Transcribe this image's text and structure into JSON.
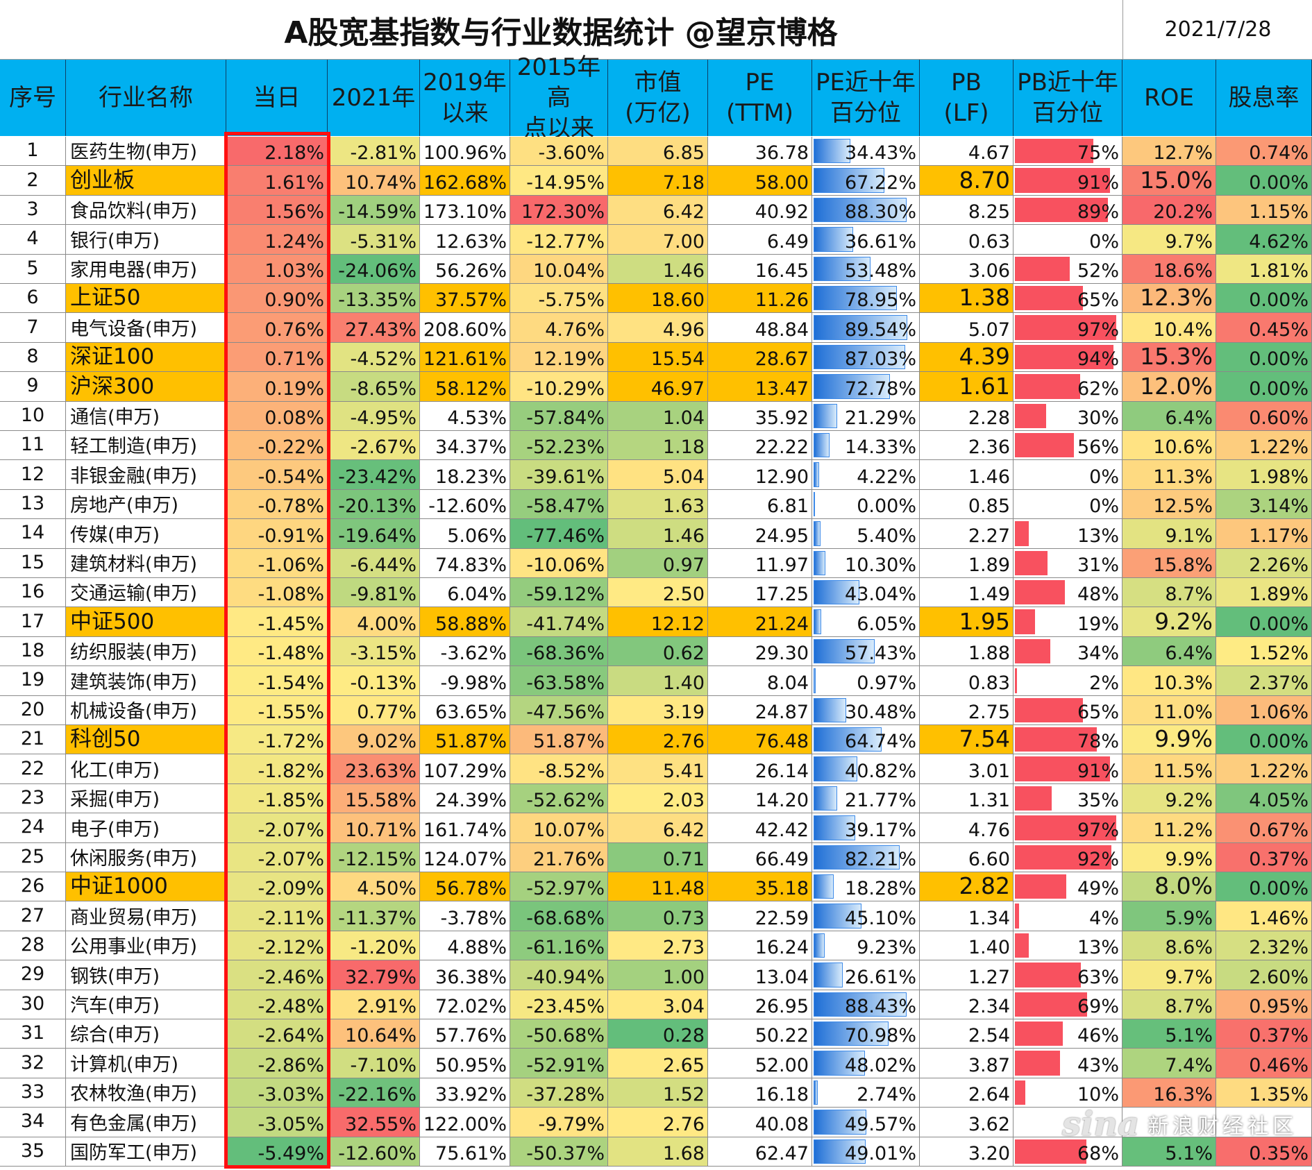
{
  "title": "A股宽基指数与行业数据统计 @望京博格",
  "date": "2021/7/28",
  "headers": [
    "序号",
    "行业名称",
    "当日",
    "2021年",
    "2019年\n以来",
    "2015年高\n点以来",
    "市值\n(万亿)",
    "PE\n(TTM)",
    "PE近十年\n百分位",
    "PB\n(LF)",
    "PB近十年\n百分位",
    "ROE",
    "股息率"
  ],
  "rows": [
    [
      "1",
      "医药生物(申万)",
      "2.18%",
      "-2.81%",
      "100.96%",
      "-3.60%",
      "6.85",
      "36.78",
      "34.43%",
      "4.67",
      "75%",
      "12.7%",
      "0.74%"
    ],
    [
      "2",
      "创业板",
      "1.61%",
      "10.74%",
      "162.68%",
      "-14.95%",
      "7.18",
      "58.00",
      "67.22%",
      "8.70",
      "91%",
      "15.0%",
      "0.00%"
    ],
    [
      "3",
      "食品饮料(申万)",
      "1.56%",
      "-14.59%",
      "173.10%",
      "172.30%",
      "6.42",
      "40.92",
      "88.30%",
      "8.25",
      "89%",
      "20.2%",
      "1.15%"
    ],
    [
      "4",
      "银行(申万)",
      "1.24%",
      "-5.31%",
      "12.63%",
      "-12.77%",
      "7.00",
      "6.49",
      "36.61%",
      "0.63",
      "0%",
      "9.7%",
      "4.62%"
    ],
    [
      "5",
      "家用电器(申万)",
      "1.03%",
      "-24.06%",
      "56.26%",
      "10.04%",
      "1.46",
      "16.45",
      "53.48%",
      "3.06",
      "52%",
      "18.6%",
      "1.81%"
    ],
    [
      "6",
      "上证50",
      "0.90%",
      "-13.35%",
      "37.57%",
      "-5.75%",
      "18.60",
      "11.26",
      "78.95%",
      "1.38",
      "65%",
      "12.3%",
      "0.00%"
    ],
    [
      "7",
      "电气设备(申万)",
      "0.76%",
      "27.43%",
      "208.60%",
      "4.76%",
      "4.96",
      "48.84",
      "89.54%",
      "5.07",
      "97%",
      "10.4%",
      "0.45%"
    ],
    [
      "8",
      "深证100",
      "0.71%",
      "-4.52%",
      "121.61%",
      "12.19%",
      "15.54",
      "28.67",
      "87.03%",
      "4.39",
      "94%",
      "15.3%",
      "0.00%"
    ],
    [
      "9",
      "沪深300",
      "0.19%",
      "-8.65%",
      "58.12%",
      "-10.29%",
      "46.97",
      "13.47",
      "72.78%",
      "1.61",
      "62%",
      "12.0%",
      "0.00%"
    ],
    [
      "10",
      "通信(申万)",
      "0.08%",
      "-4.95%",
      "4.53%",
      "-57.84%",
      "1.04",
      "35.92",
      "21.29%",
      "2.28",
      "30%",
      "6.4%",
      "0.60%"
    ],
    [
      "11",
      "轻工制造(申万)",
      "-0.22%",
      "-2.67%",
      "34.37%",
      "-52.23%",
      "1.18",
      "22.22",
      "14.33%",
      "2.36",
      "56%",
      "10.6%",
      "1.22%"
    ],
    [
      "12",
      "非银金融(申万)",
      "-0.54%",
      "-23.42%",
      "18.23%",
      "-39.61%",
      "5.04",
      "12.90",
      "4.22%",
      "1.46",
      "0%",
      "11.3%",
      "1.98%"
    ],
    [
      "13",
      "房地产(申万)",
      "-0.78%",
      "-20.13%",
      "-12.60%",
      "-58.47%",
      "1.63",
      "6.81",
      "0.00%",
      "0.85",
      "0%",
      "12.5%",
      "3.14%"
    ],
    [
      "14",
      "传媒(申万)",
      "-0.91%",
      "-19.64%",
      "5.06%",
      "-77.46%",
      "1.46",
      "24.95",
      "5.40%",
      "2.27",
      "13%",
      "9.1%",
      "1.17%"
    ],
    [
      "15",
      "建筑材料(申万)",
      "-1.06%",
      "-6.44%",
      "74.83%",
      "-10.06%",
      "0.97",
      "11.97",
      "10.30%",
      "1.89",
      "31%",
      "15.8%",
      "2.26%"
    ],
    [
      "16",
      "交通运输(申万)",
      "-1.08%",
      "-9.81%",
      "6.04%",
      "-59.12%",
      "2.50",
      "17.25",
      "43.04%",
      "1.49",
      "48%",
      "8.7%",
      "1.89%"
    ],
    [
      "17",
      "中证500",
      "-1.45%",
      "4.00%",
      "58.88%",
      "-41.74%",
      "12.12",
      "21.24",
      "6.05%",
      "1.95",
      "19%",
      "9.2%",
      "0.00%"
    ],
    [
      "18",
      "纺织服装(申万)",
      "-1.48%",
      "-3.15%",
      "-3.62%",
      "-68.36%",
      "0.62",
      "29.30",
      "57.43%",
      "1.88",
      "34%",
      "6.4%",
      "1.52%"
    ],
    [
      "19",
      "建筑装饰(申万)",
      "-1.54%",
      "-0.13%",
      "-9.98%",
      "-63.58%",
      "1.40",
      "8.04",
      "0.97%",
      "0.83",
      "2%",
      "10.3%",
      "2.37%"
    ],
    [
      "20",
      "机械设备(申万)",
      "-1.55%",
      "0.77%",
      "63.65%",
      "-47.56%",
      "3.19",
      "24.87",
      "30.48%",
      "2.75",
      "65%",
      "11.0%",
      "1.06%"
    ],
    [
      "21",
      "科创50",
      "-1.72%",
      "9.02%",
      "51.87%",
      "51.87%",
      "2.76",
      "76.48",
      "64.74%",
      "7.54",
      "78%",
      "9.9%",
      "0.00%"
    ],
    [
      "22",
      "化工(申万)",
      "-1.82%",
      "23.63%",
      "107.29%",
      "-8.52%",
      "5.41",
      "26.14",
      "40.82%",
      "3.01",
      "91%",
      "11.5%",
      "1.22%"
    ],
    [
      "23",
      "采掘(申万)",
      "-1.85%",
      "15.58%",
      "24.39%",
      "-52.62%",
      "2.03",
      "14.20",
      "21.77%",
      "1.31",
      "35%",
      "9.2%",
      "4.05%"
    ],
    [
      "24",
      "电子(申万)",
      "-2.07%",
      "10.71%",
      "161.74%",
      "10.07%",
      "6.42",
      "42.42",
      "39.17%",
      "4.76",
      "97%",
      "11.2%",
      "0.67%"
    ],
    [
      "25",
      "休闲服务(申万)",
      "-2.07%",
      "-12.15%",
      "124.07%",
      "21.76%",
      "0.71",
      "66.49",
      "82.21%",
      "6.60",
      "92%",
      "9.9%",
      "0.37%"
    ],
    [
      "26",
      "中证1000",
      "-2.09%",
      "4.50%",
      "56.78%",
      "-52.97%",
      "11.48",
      "35.18",
      "18.28%",
      "2.82",
      "49%",
      "8.0%",
      "0.00%"
    ],
    [
      "27",
      "商业贸易(申万)",
      "-2.11%",
      "-11.37%",
      "-3.78%",
      "-68.68%",
      "0.73",
      "22.59",
      "45.10%",
      "1.34",
      "4%",
      "5.9%",
      "1.46%"
    ],
    [
      "28",
      "公用事业(申万)",
      "-2.12%",
      "-1.20%",
      "4.88%",
      "-61.16%",
      "2.73",
      "16.24",
      "9.23%",
      "1.40",
      "13%",
      "8.6%",
      "2.32%"
    ],
    [
      "29",
      "钢铁(申万)",
      "-2.46%",
      "32.79%",
      "36.38%",
      "-40.94%",
      "1.00",
      "13.04",
      "26.61%",
      "1.27",
      "63%",
      "9.7%",
      "2.60%"
    ],
    [
      "30",
      "汽车(申万)",
      "-2.48%",
      "2.91%",
      "72.02%",
      "-23.45%",
      "3.04",
      "26.95",
      "88.43%",
      "2.34",
      "69%",
      "8.7%",
      "0.95%"
    ],
    [
      "31",
      "综合(申万)",
      "-2.64%",
      "10.64%",
      "57.76%",
      "-50.68%",
      "0.28",
      "50.22",
      "70.98%",
      "2.54",
      "46%",
      "5.1%",
      "0.37%"
    ],
    [
      "32",
      "计算机(申万)",
      "-2.86%",
      "-7.10%",
      "50.95%",
      "-52.91%",
      "2.65",
      "52.00",
      "48.02%",
      "3.87",
      "43%",
      "7.4%",
      "0.46%"
    ],
    [
      "33",
      "农林牧渔(申万)",
      "-3.03%",
      "-22.16%",
      "33.92%",
      "-37.28%",
      "1.52",
      "16.18",
      "2.74%",
      "2.64",
      "10%",
      "16.3%",
      "1.35%"
    ],
    [
      "34",
      "有色金属(申万)",
      "-3.05%",
      "32.55%",
      "122.00%",
      "-9.79%",
      "2.76",
      "40.08",
      "49.57%",
      "3.62",
      "",
      "",
      ""
    ],
    [
      "35",
      "国防军工(申万)",
      "-5.49%",
      "-12.60%",
      "75.61%",
      "-50.37%",
      "1.68",
      "62.47",
      "49.01%",
      "3.20",
      "68%",
      "5.1%",
      "0.35%"
    ]
  ],
  "index_rows": [
    "2",
    "6",
    "8",
    "9",
    "17",
    "21",
    "26"
  ],
  "colors": {
    "header_bg": "#00b0f0",
    "index_bg": "#ffc000",
    "highlight_border": "#ff1010",
    "pe_bar": "#2f7fe0",
    "pb_bar": "#f8515f"
  },
  "watermark": {
    "logo": "sina",
    "text": "新浪财经社区"
  }
}
